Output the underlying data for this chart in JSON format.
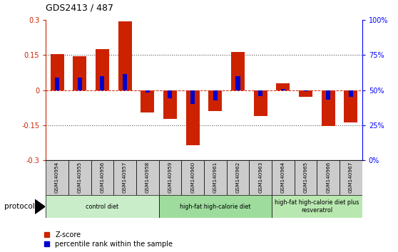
{
  "title": "GDS2413 / 487",
  "samples": [
    "GSM140954",
    "GSM140955",
    "GSM140956",
    "GSM140957",
    "GSM140958",
    "GSM140959",
    "GSM140960",
    "GSM140961",
    "GSM140962",
    "GSM140963",
    "GSM140964",
    "GSM140965",
    "GSM140966",
    "GSM140967"
  ],
  "zscore": [
    0.155,
    0.145,
    0.175,
    0.295,
    -0.095,
    -0.125,
    -0.235,
    -0.09,
    0.165,
    -0.11,
    0.03,
    -0.03,
    -0.155,
    -0.14
  ],
  "pct_rank": [
    0.055,
    0.055,
    0.06,
    0.07,
    -0.01,
    -0.035,
    -0.06,
    -0.045,
    0.06,
    -0.025,
    0.005,
    -0.005,
    -0.04,
    -0.03
  ],
  "groups": [
    {
      "label": "control diet",
      "start": 0,
      "end": 4
    },
    {
      "label": "high-fat high-calorie diet",
      "start": 5,
      "end": 9
    },
    {
      "label": "high-fat high-calorie diet plus\nresveratrol",
      "start": 10,
      "end": 13
    }
  ],
  "group_colors": [
    "#c8edc8",
    "#9ddc9d",
    "#b8e8b0"
  ],
  "ylim": [
    -0.3,
    0.3
  ],
  "yticks_left": [
    -0.3,
    -0.15,
    0.0,
    0.15,
    0.3
  ],
  "ytick_labels_left": [
    "-0.3",
    "-0.15",
    "0",
    "0.15",
    "0.3"
  ],
  "pct_ticks_y": [
    -0.3,
    -0.15,
    0.0,
    0.15,
    0.3
  ],
  "pct_labels": [
    "0%",
    "25%",
    "50%",
    "75%",
    "100%"
  ],
  "bar_color_red": "#cc2200",
  "bar_color_blue": "#0000cc",
  "bar_width": 0.6,
  "dotted_color": "#555555",
  "sample_bg": "#cccccc",
  "bg_color": "#ffffff",
  "protocol_label": "protocol"
}
